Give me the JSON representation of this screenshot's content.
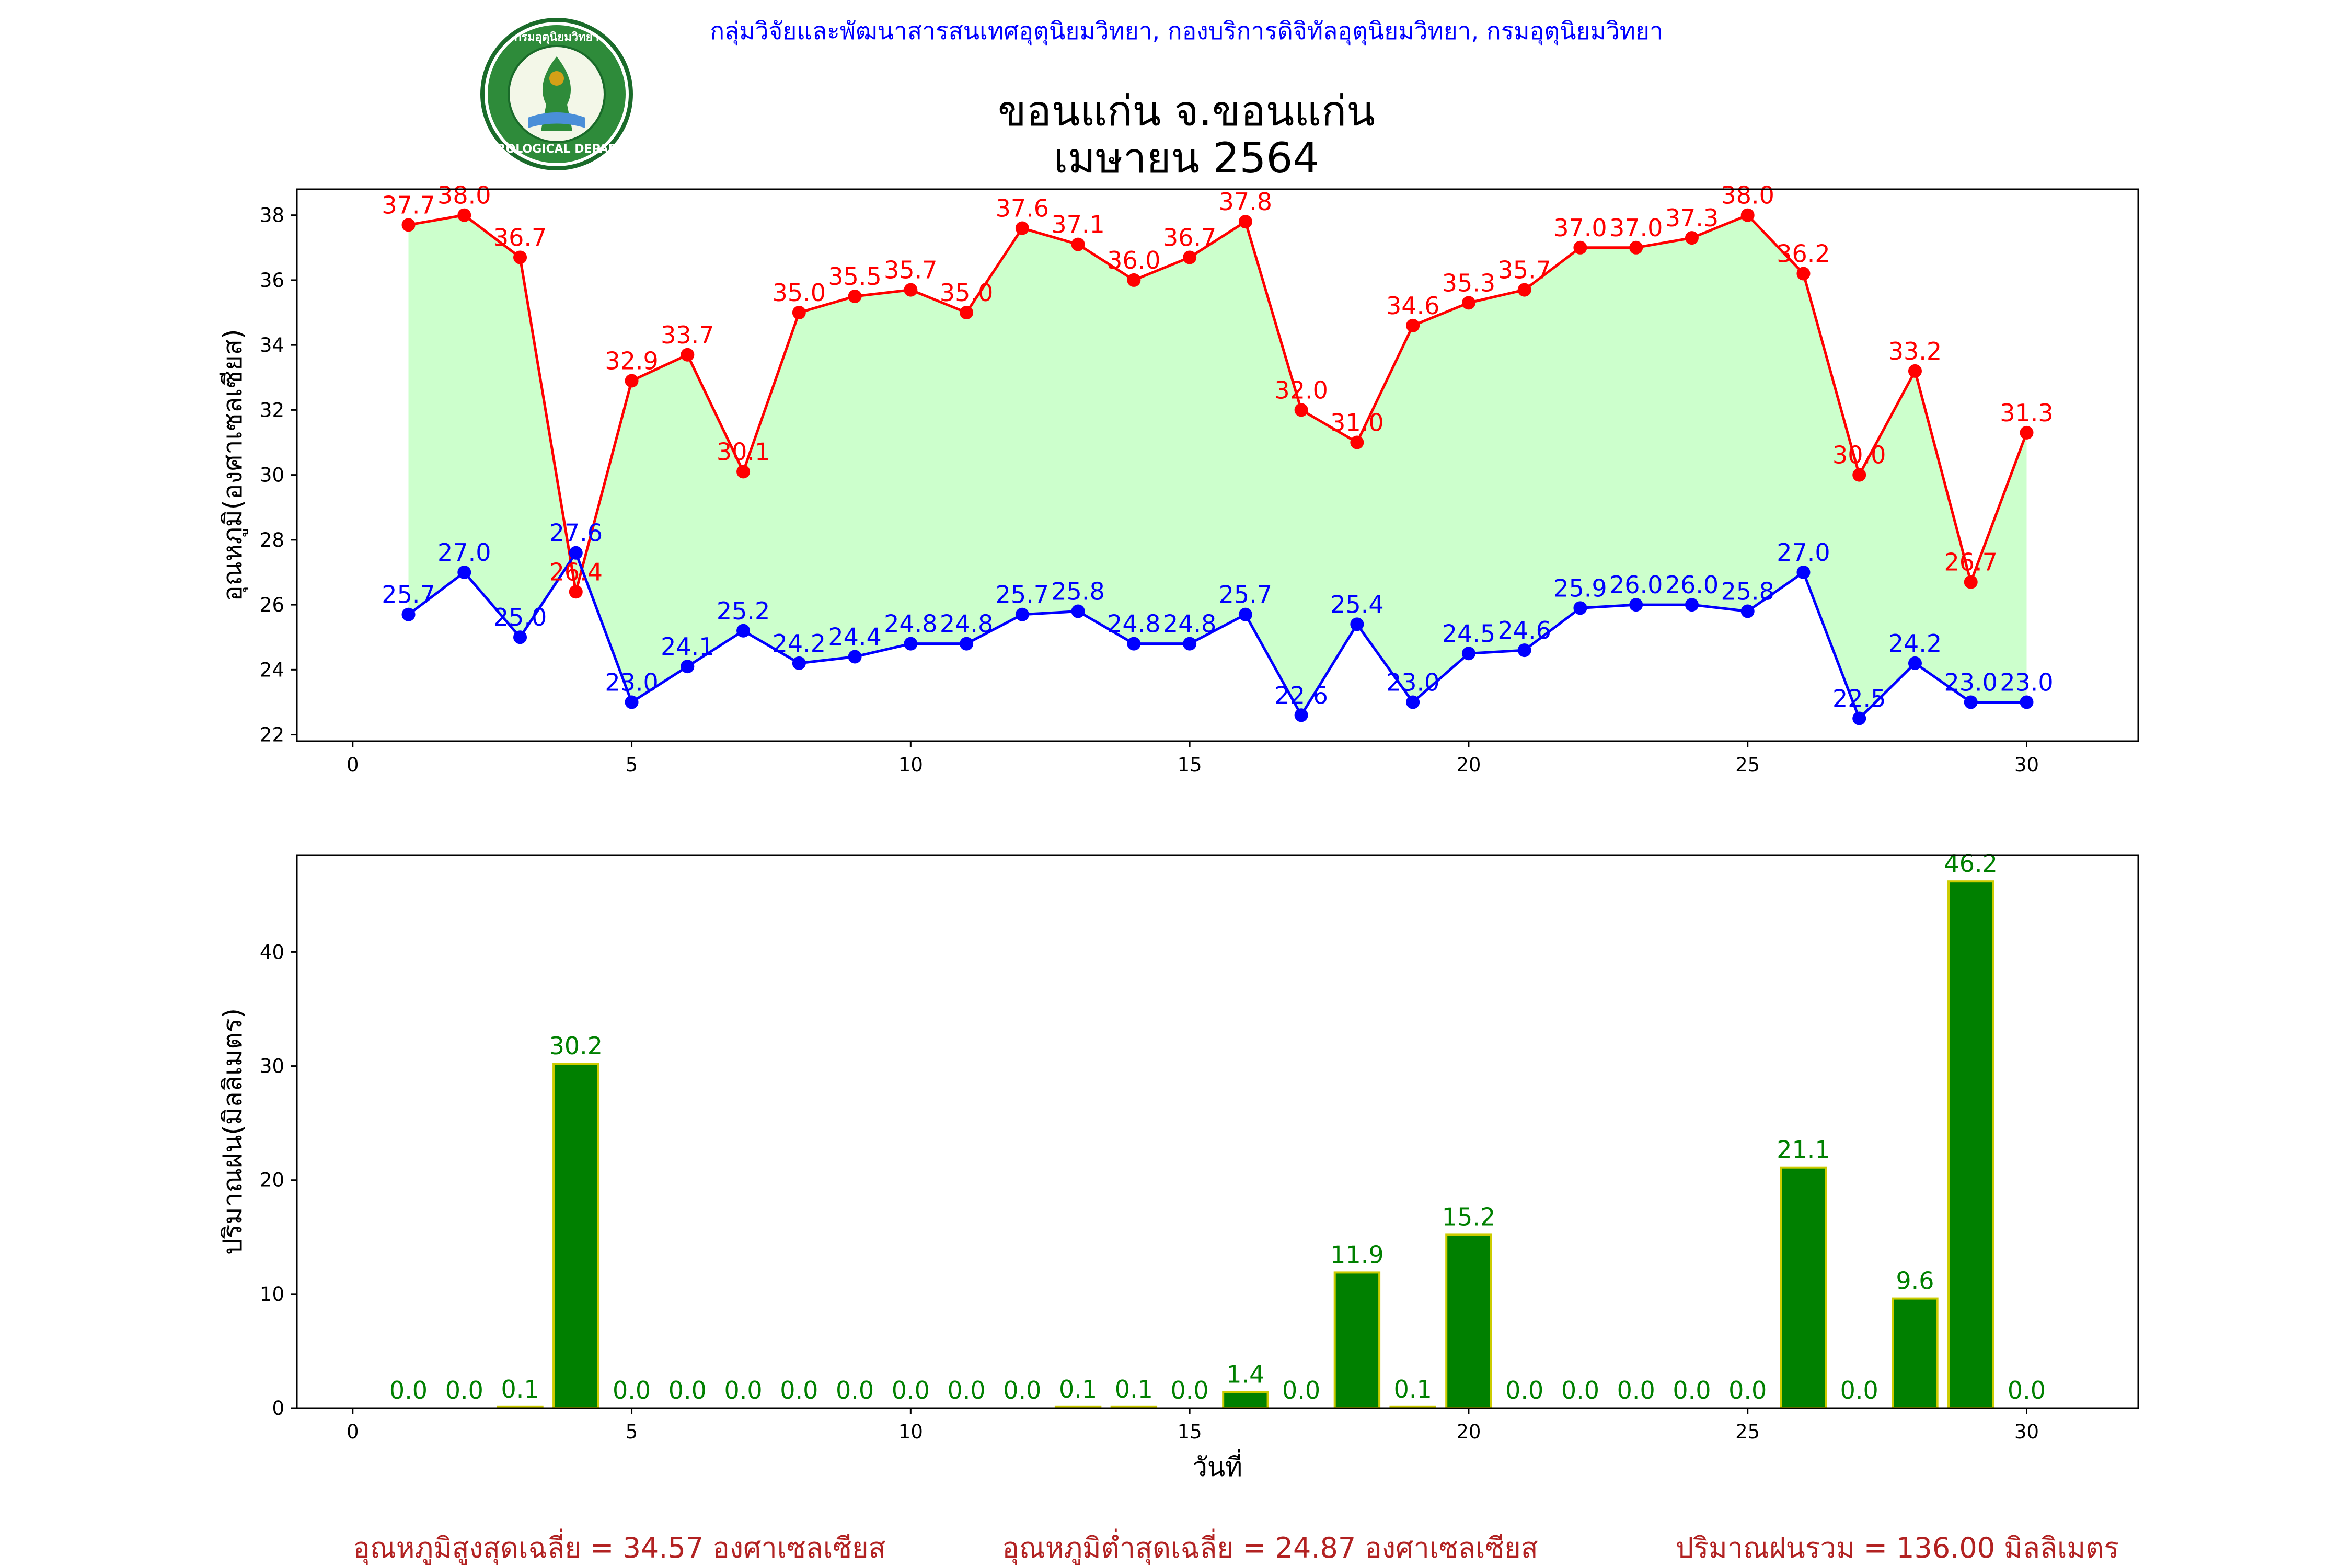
{
  "header": {
    "agency": "กลุ่มวิจัยและพัฒนาสารสนเทศอุตุนิยมวิทยา, กองบริการดิจิทัลอุตุนิยมวิทยา, กรมอุตุนิยมวิทยา",
    "logo_top": "กรมอุตุนิยมวิทยา",
    "logo_bottom": "METEOROLOGICAL DEPARTMENT"
  },
  "title": {
    "line1": "ขอนแก่น จ.ขอนแก่น",
    "line2": "เมษายน 2564"
  },
  "colors": {
    "max_line": "#ff0000",
    "min_line": "#0000ff",
    "fill": "#ccffcc",
    "bar": "#008000",
    "bar_edge": "#cccc00",
    "summary": "#b22222"
  },
  "chart_data": [
    {
      "type": "line",
      "ylabel": "อุณหภูมิ(องศาเซลเซียส)",
      "xlabel": "",
      "xlim": [
        -1,
        32
      ],
      "ylim": [
        21.8,
        38.8
      ],
      "xticks": [
        0,
        5,
        10,
        15,
        20,
        25,
        30
      ],
      "yticks": [
        22,
        24,
        26,
        28,
        30,
        32,
        34,
        36,
        38
      ],
      "x": [
        1,
        2,
        3,
        4,
        5,
        6,
        7,
        8,
        9,
        10,
        11,
        12,
        13,
        14,
        15,
        16,
        17,
        18,
        19,
        20,
        21,
        22,
        23,
        24,
        25,
        26,
        27,
        28,
        29,
        30
      ],
      "series": [
        {
          "values": [
            37.7,
            38.0,
            36.7,
            26.4,
            32.9,
            33.7,
            30.1,
            35.0,
            35.5,
            35.7,
            35.0,
            37.6,
            37.1,
            36.0,
            36.7,
            37.8,
            32.0,
            31.0,
            34.6,
            35.3,
            35.7,
            37.0,
            37.0,
            37.3,
            38.0,
            36.2,
            30.0,
            33.2,
            26.7,
            31.3
          ],
          "labels": [
            "37.7",
            "38.0",
            "36.7",
            "26.4",
            "32.9",
            "33.7",
            "30.1",
            "35.0",
            "35.5",
            "35.7",
            "35.0",
            "37.6",
            "37.1",
            "36.0",
            "36.7",
            "37.8",
            "32.0",
            "31.0",
            "34.6",
            "35.3",
            "35.7",
            "37.0",
            "37.0",
            "37.3",
            "38.0",
            "36.2",
            "30.0",
            "33.2",
            "26.7",
            "31.3"
          ]
        },
        {
          "values": [
            25.7,
            27.0,
            25.0,
            27.6,
            23.0,
            24.1,
            25.2,
            24.2,
            24.4,
            24.8,
            24.8,
            25.7,
            25.8,
            24.8,
            24.8,
            25.7,
            22.6,
            25.4,
            23.0,
            24.5,
            24.6,
            25.9,
            26.0,
            26.0,
            25.8,
            27.0,
            22.5,
            24.2,
            23.0,
            23.0
          ],
          "labels": [
            "25.7",
            "27.0",
            "25.0",
            "27.6",
            "23.0",
            "24.1",
            "25.2",
            "24.2",
            "24.4",
            "24.8",
            "24.8",
            "25.7",
            "25.8",
            "24.8",
            "24.8",
            "25.7",
            "22.6",
            "25.4",
            "23.0",
            "24.5",
            "24.6",
            "25.9",
            "26.0",
            "26.0",
            "25.8",
            "27.0",
            "22.5",
            "24.2",
            "23.0",
            "23.0"
          ]
        }
      ]
    },
    {
      "type": "bar",
      "ylabel": "ปริมาณฝน(มิลลิเมตร)",
      "xlabel": "วันที่",
      "xlim": [
        -1,
        32
      ],
      "ylim": [
        0,
        48.5
      ],
      "xticks": [
        0,
        5,
        10,
        15,
        20,
        25,
        30
      ],
      "yticks": [
        0,
        10,
        20,
        30,
        40
      ],
      "x": [
        1,
        2,
        3,
        4,
        5,
        6,
        7,
        8,
        9,
        10,
        11,
        12,
        13,
        14,
        15,
        16,
        17,
        18,
        19,
        20,
        21,
        22,
        23,
        24,
        25,
        26,
        27,
        28,
        29,
        30
      ],
      "values": [
        0.0,
        0.0,
        0.1,
        30.2,
        0.0,
        0.0,
        0.0,
        0.0,
        0.0,
        0.0,
        0.0,
        0.0,
        0.1,
        0.1,
        0.0,
        1.4,
        0.0,
        11.9,
        0.1,
        15.2,
        0.0,
        0.0,
        0.0,
        0.0,
        0.0,
        21.1,
        0.0,
        9.6,
        46.2,
        0.0
      ],
      "labels": [
        "0.0",
        "0.0",
        "0.1",
        "30.2",
        "0.0",
        "0.0",
        "0.0",
        "0.0",
        "0.0",
        "0.0",
        "0.0",
        "0.0",
        "0.1",
        "0.1",
        "0.0",
        "1.4",
        "0.0",
        "11.9",
        "0.1",
        "15.2",
        "0.0",
        "0.0",
        "0.0",
        "0.0",
        "0.0",
        "21.1",
        "0.0",
        "9.6",
        "46.2",
        "0.0"
      ]
    }
  ],
  "summary": {
    "avg_max": "อุณหภูมิสูงสุดเฉลี่ย = 34.57 องศาเซลเซียส",
    "avg_min": "อุณหภูมิต่ำสุดเฉลี่ย = 24.87 องศาเซลเซียส",
    "total_rain": "ปริมาณฝนรวม = 136.00 มิลลิเมตร"
  }
}
